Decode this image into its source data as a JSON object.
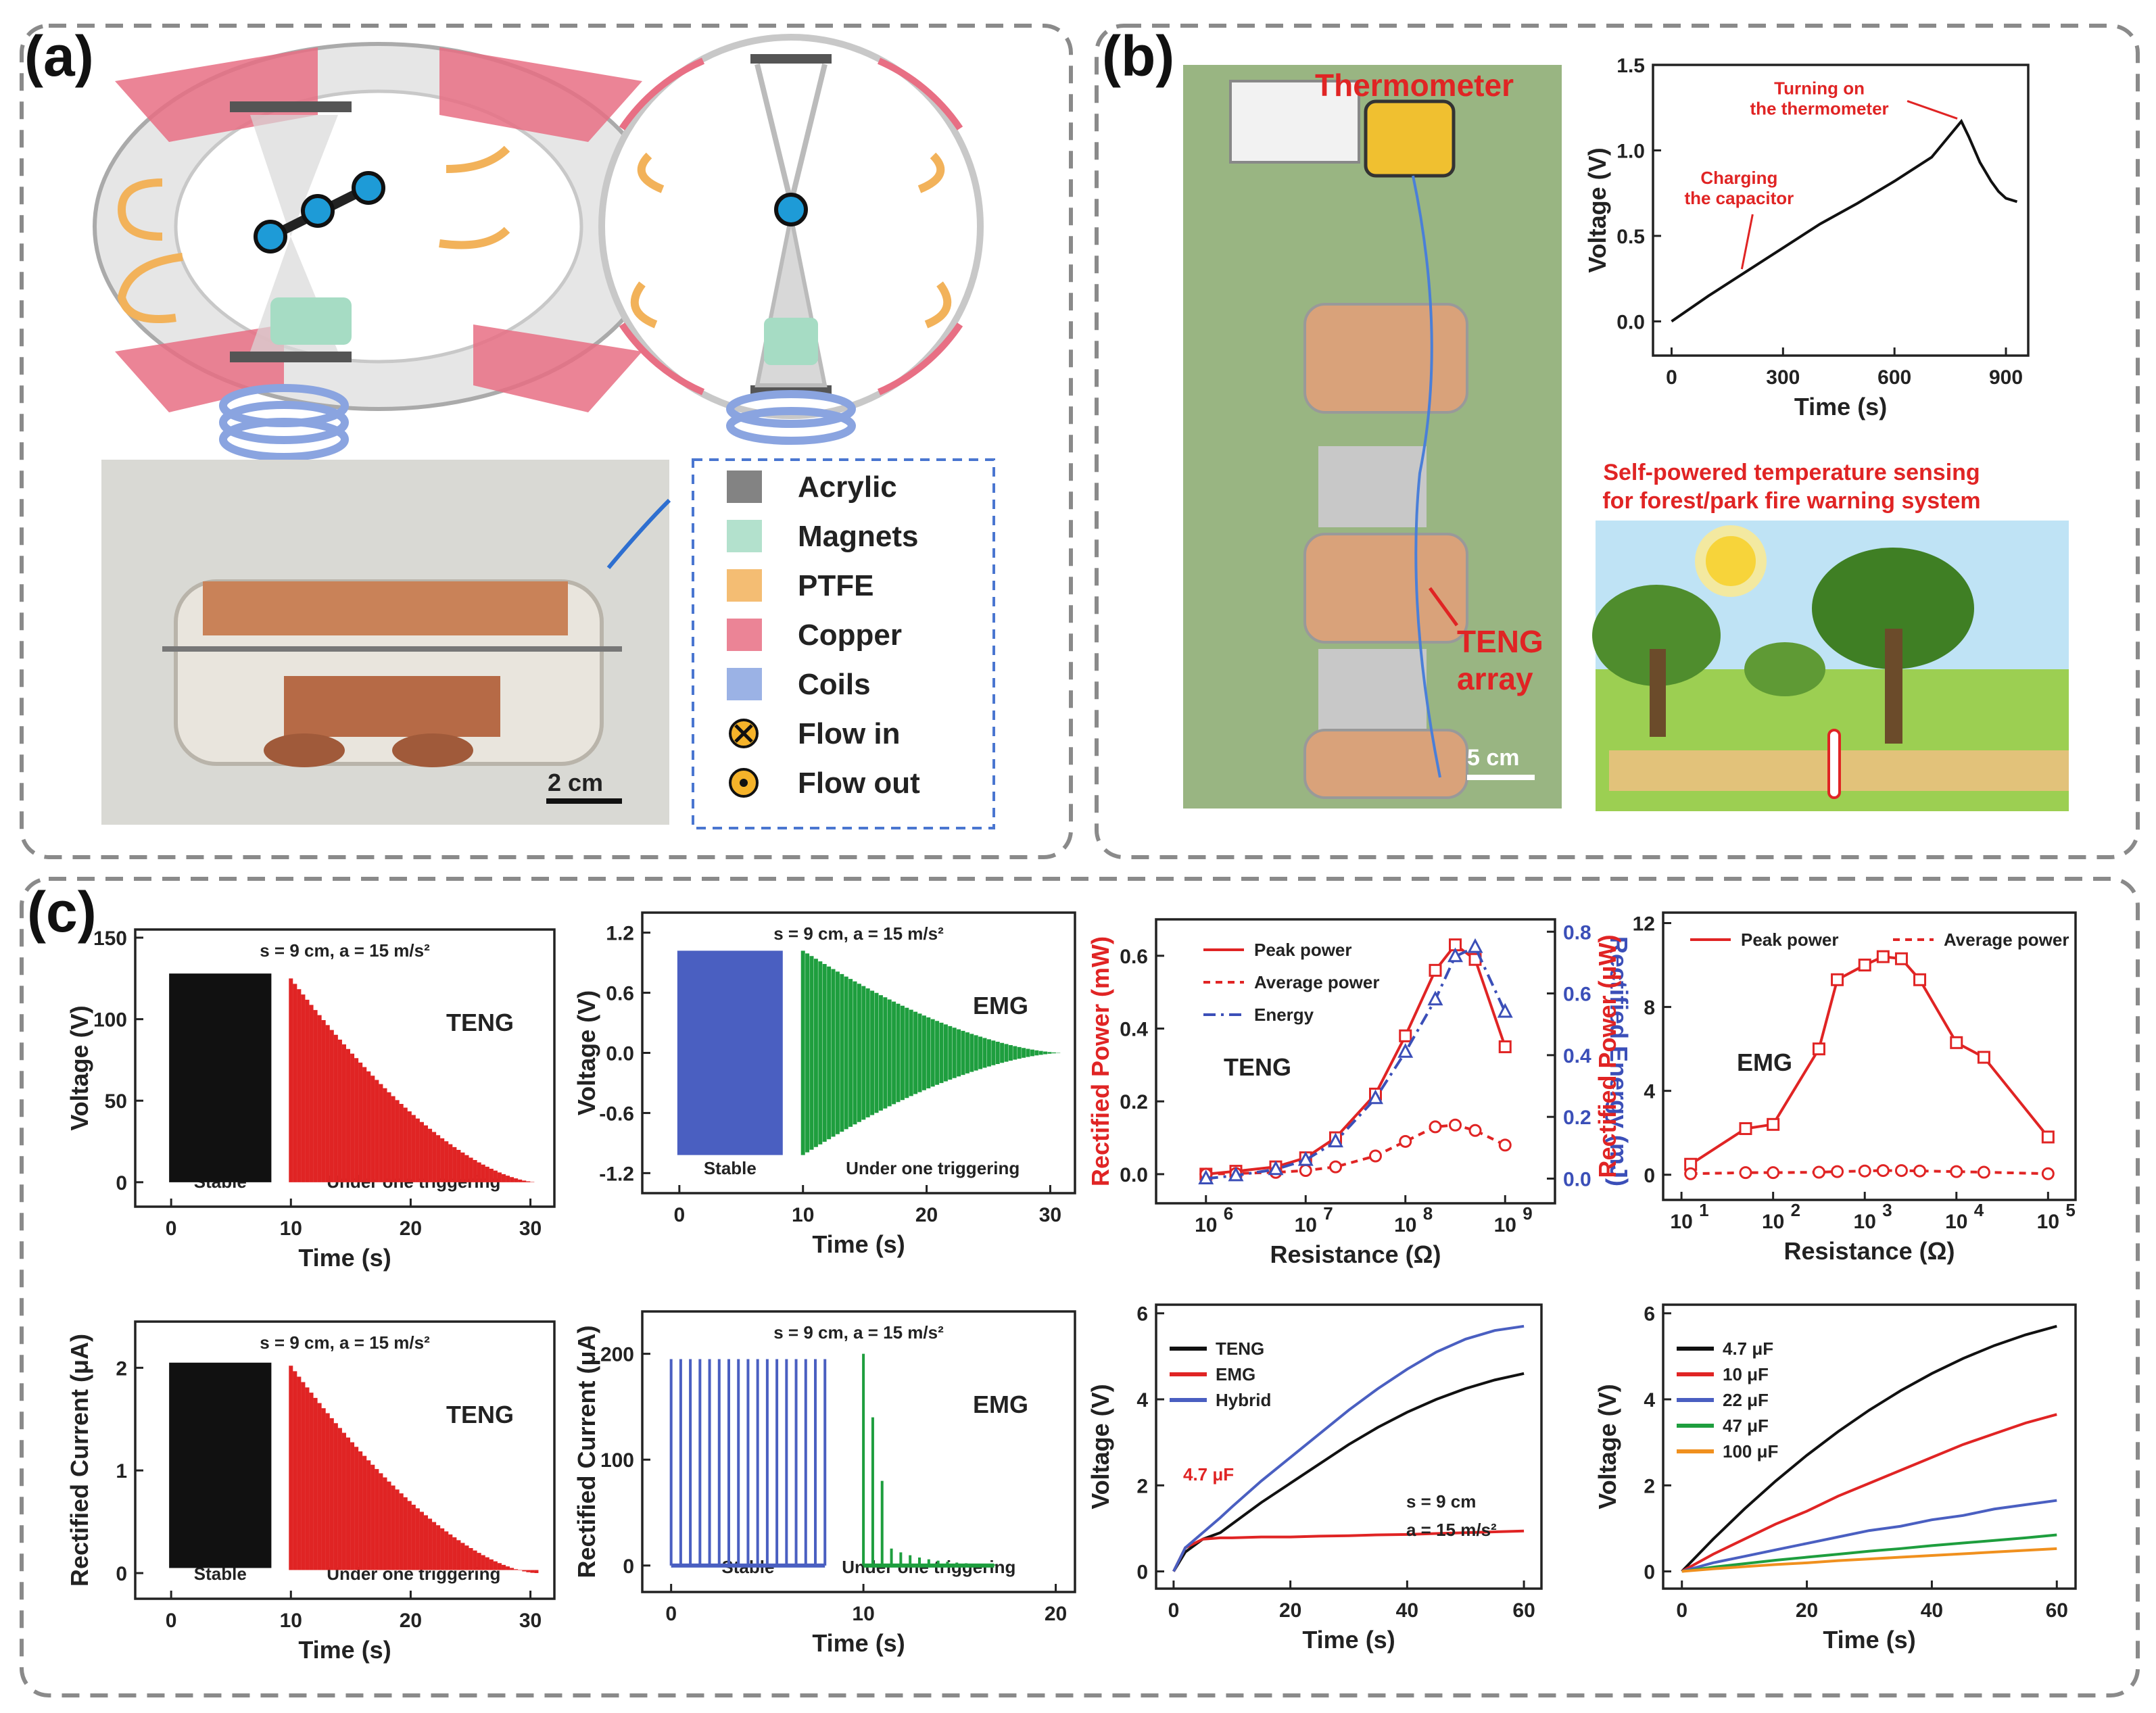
{
  "panels": {
    "a": {
      "label": "(a)",
      "legend": [
        {
          "name": "Acrylic",
          "color": "#6d6d6d"
        },
        {
          "name": "Magnets",
          "color": "#a6dcc4"
        },
        {
          "name": "PTFE",
          "color": "#f2b25a"
        },
        {
          "name": "Copper",
          "color": "#e86f84"
        },
        {
          "name": "Coils",
          "color": "#8aa4e0"
        },
        {
          "name": "Flow in",
          "symbol": "⊗",
          "color": "#f5b32a"
        },
        {
          "name": "Flow out",
          "symbol": "⊙",
          "color": "#f5b32a"
        }
      ],
      "scale_bar": "2 cm"
    },
    "b": {
      "label": "(b)",
      "photo_labels": {
        "thermometer": "Thermometer",
        "teng": "TENG",
        "array": "array",
        "scale": "5 cm"
      },
      "scene_title_1": "Self-powered temperature sensing",
      "scene_title_2": "for forest/park fire warning system"
    },
    "c": {
      "label": "(c)"
    }
  },
  "chart_data": [
    {
      "id": "b_charge",
      "type": "line",
      "title": "",
      "xlabel": "Time (s)",
      "ylabel": "Voltage (V)",
      "xlim": [
        -50,
        960
      ],
      "ylim": [
        -0.2,
        1.5
      ],
      "xticks": [
        0,
        300,
        600,
        900
      ],
      "yticks": [
        0.0,
        0.5,
        1.0,
        1.5
      ],
      "ytick_labels": [
        "0.0",
        "0.5",
        "1.0",
        "1.5"
      ],
      "series": [
        {
          "name": "Voltage",
          "color": "#111111",
          "x": [
            0,
            100,
            200,
            300,
            400,
            500,
            600,
            700,
            780,
            800,
            830,
            860,
            880,
            900,
            930
          ],
          "y": [
            0.0,
            0.15,
            0.29,
            0.43,
            0.57,
            0.69,
            0.82,
            0.96,
            1.17,
            1.08,
            0.93,
            0.82,
            0.76,
            0.72,
            0.7
          ]
        }
      ],
      "annotations": [
        {
          "text": "Turning on",
          "text2": "the thermometer",
          "at": [
            780,
            1.17
          ]
        },
        {
          "text": "Charging",
          "text2": "the capacitor",
          "at": [
            200,
            0.29
          ]
        }
      ]
    },
    {
      "id": "c_teng_voltage",
      "type": "line",
      "title": "s = 9 cm, a = 15 m/s²",
      "xlabel": "Time (s)",
      "ylabel": "Voltage (V)",
      "xlim": [
        -3,
        32
      ],
      "ylim": [
        -15,
        155
      ],
      "xticks": [
        0,
        10,
        20,
        30
      ],
      "yticks": [
        0,
        50,
        100,
        150
      ],
      "ytick_labels": [
        "0",
        "50",
        "100",
        "150"
      ],
      "series": [
        {
          "name": "Stable",
          "color": "#111111",
          "kind": "stable",
          "x": [
            0,
            8.2
          ],
          "y": [
            128,
            0
          ]
        },
        {
          "name": "Under one triggering",
          "color": "#e02424",
          "kind": "decay",
          "x": [
            10,
            30.5
          ],
          "y": [
            125,
            0
          ]
        }
      ],
      "label": "TENG",
      "sublabels": [
        "Stable",
        "Under one triggering"
      ]
    },
    {
      "id": "c_emg_voltage",
      "type": "line",
      "title": "s = 9 cm, a = 15 m/s²",
      "xlabel": "Time (s)",
      "ylabel": "Voltage (V)",
      "xlim": [
        -3,
        32
      ],
      "ylim": [
        -1.4,
        1.4
      ],
      "xticks": [
        0,
        10,
        20,
        30
      ],
      "yticks": [
        -1.2,
        -0.6,
        0.0,
        0.6,
        1.2
      ],
      "ytick_labels": [
        "-1.2",
        "-0.6",
        "0.0",
        "0.6",
        "1.2"
      ],
      "series": [
        {
          "name": "Stable",
          "color": "#4a5fc1",
          "kind": "sym",
          "x": [
            0,
            8.2
          ],
          "y": [
            1.02,
            0
          ]
        },
        {
          "name": "Under one triggering",
          "color": "#1e9e3e",
          "kind": "symdecay",
          "x": [
            10,
            31
          ],
          "y": [
            1.02,
            0
          ]
        }
      ],
      "label": "EMG",
      "sublabels": [
        "Stable",
        "Under one triggering"
      ]
    },
    {
      "id": "c_teng_power",
      "type": "scatter",
      "title": "",
      "xlabel": "Resistance (Ω)",
      "ylabel": "Rectified Power (mW)",
      "y2label": "Rectified Energy (mJ)",
      "xscale": "log",
      "xlim": [
        5.5,
        9.5
      ],
      "ylim": [
        -0.08,
        0.7
      ],
      "y2lim": [
        -0.08,
        0.84
      ],
      "xticks": [
        6,
        7,
        8,
        9
      ],
      "xtick_labels": [
        "10",
        "10",
        "10",
        "10"
      ],
      "xtick_exp": [
        "6",
        "7",
        "8",
        "9"
      ],
      "yticks": [
        0.0,
        0.2,
        0.4,
        0.6
      ],
      "ytick_labels": [
        "0.0",
        "0.2",
        "0.4",
        "0.6"
      ],
      "y2ticks": [
        0.0,
        0.2,
        0.4,
        0.6,
        0.8
      ],
      "y2tick_labels": [
        "0.0",
        "0.2",
        "0.4",
        "0.6",
        "0.8"
      ],
      "x": [
        6,
        6.3,
        6.7,
        7,
        7.3,
        7.7,
        8,
        8.3,
        8.5,
        8.7,
        9
      ],
      "series": [
        {
          "name": "Peak power",
          "color": "#e02424",
          "marker": "square",
          "y": [
            0.0,
            0.008,
            0.02,
            0.045,
            0.1,
            0.22,
            0.38,
            0.56,
            0.63,
            0.59,
            0.35
          ]
        },
        {
          "name": "Average power",
          "color": "#e02424",
          "marker": "circle",
          "dashed": true,
          "y": [
            0.0,
            0.002,
            0.005,
            0.01,
            0.02,
            0.05,
            0.09,
            0.13,
            0.135,
            0.12,
            0.08
          ]
        },
        {
          "name": "Energy",
          "color": "#3b4fb8",
          "marker": "triangle",
          "dashdot": true,
          "axis": "y2",
          "y": [
            0.0,
            0.01,
            0.03,
            0.06,
            0.12,
            0.26,
            0.41,
            0.58,
            0.72,
            0.75,
            0.54
          ]
        }
      ],
      "label": "TENG"
    },
    {
      "id": "c_emg_power",
      "type": "scatter",
      "title": "",
      "xlabel": "Resistance (Ω)",
      "ylabel": "Rectified Power (μW)",
      "xscale": "log",
      "xlim": [
        0.8,
        5.3
      ],
      "ylim": [
        -1.2,
        12.5
      ],
      "xticks": [
        1,
        2,
        3,
        4,
        5
      ],
      "xtick_labels": [
        "10",
        "10",
        "10",
        "10",
        "10"
      ],
      "xtick_exp": [
        "1",
        "2",
        "3",
        "4",
        "5"
      ],
      "yticks": [
        0,
        4,
        8,
        12
      ],
      "ytick_labels": [
        "0",
        "4",
        "8",
        "12"
      ],
      "x": [
        1.1,
        1.7,
        2,
        2.5,
        2.7,
        3,
        3.2,
        3.4,
        3.6,
        4,
        4.3,
        5
      ],
      "series": [
        {
          "name": "Peak power",
          "color": "#e02424",
          "marker": "square",
          "y": [
            0.5,
            2.2,
            2.4,
            6.0,
            9.3,
            10.0,
            10.4,
            10.3,
            9.3,
            6.3,
            5.6,
            1.8
          ]
        },
        {
          "name": "Average power",
          "color": "#e02424",
          "marker": "circle",
          "dashed": true,
          "y": [
            0.05,
            0.1,
            0.1,
            0.12,
            0.15,
            0.18,
            0.2,
            0.2,
            0.18,
            0.15,
            0.12,
            0.05
          ]
        }
      ],
      "label": "EMG"
    },
    {
      "id": "c_teng_current",
      "type": "line",
      "title": "s = 9 cm, a = 15 m/s²",
      "xlabel": "Time (s)",
      "ylabel": "Rectified Current (μA)",
      "xlim": [
        -3,
        32
      ],
      "ylim": [
        -0.25,
        2.45
      ],
      "xticks": [
        0,
        10,
        20,
        30
      ],
      "yticks": [
        0,
        1,
        2
      ],
      "ytick_labels": [
        "0",
        "1",
        "2"
      ],
      "series": [
        {
          "name": "Stable",
          "color": "#111111",
          "kind": "stable",
          "x": [
            0,
            8.2
          ],
          "y": [
            2.05,
            0.05
          ]
        },
        {
          "name": "Under one triggering",
          "color": "#e02424",
          "kind": "decay",
          "x": [
            10,
            30.5
          ],
          "y": [
            2.02,
            0.03
          ]
        }
      ],
      "label": "TENG",
      "sublabels": [
        "Stable",
        "Under one triggering"
      ]
    },
    {
      "id": "c_emg_current",
      "type": "line",
      "title": "s = 9 cm, a = 15 m/s²",
      "xlabel": "Time (s)",
      "ylabel": "Rectified Current (μA)",
      "xlim": [
        -1.5,
        21
      ],
      "ylim": [
        -25,
        240
      ],
      "xticks": [
        0,
        10,
        20
      ],
      "yticks": [
        0,
        100,
        200
      ],
      "ytick_labels": [
        "0",
        "100",
        "200"
      ],
      "series": [
        {
          "name": "Stable",
          "color": "#4a5fc1",
          "kind": "spikes",
          "x": [
            0,
            8
          ],
          "y": [
            195,
            0
          ]
        },
        {
          "name": "Under one triggering",
          "color": "#1e9e3e",
          "kind": "spikedecay",
          "x": [
            10,
            16.8
          ],
          "y": [
            200,
            0
          ]
        }
      ],
      "label": "EMG",
      "sublabels": [
        "Stable",
        "Under one triggering"
      ]
    },
    {
      "id": "c_charge_compare",
      "type": "line",
      "title": "",
      "xlabel": "Time (s)",
      "ylabel": "Voltage (V)",
      "xlim": [
        -3,
        63
      ],
      "ylim": [
        -0.4,
        6.2
      ],
      "xticks": [
        0,
        20,
        40,
        60
      ],
      "yticks": [
        0,
        2,
        4,
        6
      ],
      "ytick_labels": [
        "0",
        "2",
        "4",
        "6"
      ],
      "x": [
        0,
        2,
        5,
        8,
        10,
        15,
        20,
        25,
        30,
        35,
        40,
        45,
        50,
        55,
        60
      ],
      "series": [
        {
          "name": "TENG",
          "color": "#111111",
          "y": [
            0,
            0.45,
            0.75,
            0.9,
            1.1,
            1.6,
            2.05,
            2.5,
            2.95,
            3.35,
            3.7,
            4.0,
            4.25,
            4.45,
            4.6
          ]
        },
        {
          "name": "EMG",
          "color": "#e02424",
          "y": [
            0,
            0.55,
            0.75,
            0.78,
            0.78,
            0.8,
            0.8,
            0.82,
            0.83,
            0.85,
            0.86,
            0.88,
            0.9,
            0.92,
            0.94
          ]
        },
        {
          "name": "Hybrid",
          "color": "#4a5fc1",
          "y": [
            0,
            0.55,
            0.9,
            1.25,
            1.5,
            2.1,
            2.65,
            3.2,
            3.75,
            4.25,
            4.7,
            5.1,
            5.4,
            5.6,
            5.7
          ]
        }
      ],
      "notes": [
        "4.7 μF",
        "s = 9 cm",
        "a = 15 m/s²"
      ]
    },
    {
      "id": "c_capacitors",
      "type": "line",
      "title": "",
      "xlabel": "Time (s)",
      "ylabel": "Voltage (V)",
      "xlim": [
        -3,
        63
      ],
      "ylim": [
        -0.4,
        6.2
      ],
      "xticks": [
        0,
        20,
        40,
        60
      ],
      "yticks": [
        0,
        2,
        4,
        6
      ],
      "ytick_labels": [
        "0",
        "2",
        "4",
        "6"
      ],
      "x": [
        0,
        5,
        10,
        15,
        20,
        25,
        30,
        35,
        40,
        45,
        50,
        55,
        60
      ],
      "series": [
        {
          "name": "4.7 μF",
          "color": "#111111",
          "y": [
            0,
            0.75,
            1.45,
            2.1,
            2.7,
            3.25,
            3.75,
            4.2,
            4.6,
            4.95,
            5.25,
            5.5,
            5.7
          ]
        },
        {
          "name": "10 μF",
          "color": "#e02424",
          "y": [
            0,
            0.4,
            0.75,
            1.1,
            1.4,
            1.75,
            2.05,
            2.35,
            2.65,
            2.95,
            3.2,
            3.45,
            3.65
          ]
        },
        {
          "name": "22 μF",
          "color": "#4a5fc1",
          "y": [
            0,
            0.2,
            0.35,
            0.5,
            0.65,
            0.8,
            0.95,
            1.05,
            1.2,
            1.3,
            1.45,
            1.55,
            1.65
          ]
        },
        {
          "name": "47 μF",
          "color": "#1e9e3e",
          "y": [
            0,
            0.1,
            0.18,
            0.26,
            0.33,
            0.4,
            0.47,
            0.53,
            0.6,
            0.66,
            0.72,
            0.78,
            0.85
          ]
        },
        {
          "name": "100 μF",
          "color": "#f0901e",
          "y": [
            0,
            0.06,
            0.11,
            0.16,
            0.2,
            0.25,
            0.29,
            0.33,
            0.37,
            0.41,
            0.45,
            0.49,
            0.53
          ]
        }
      ]
    }
  ]
}
